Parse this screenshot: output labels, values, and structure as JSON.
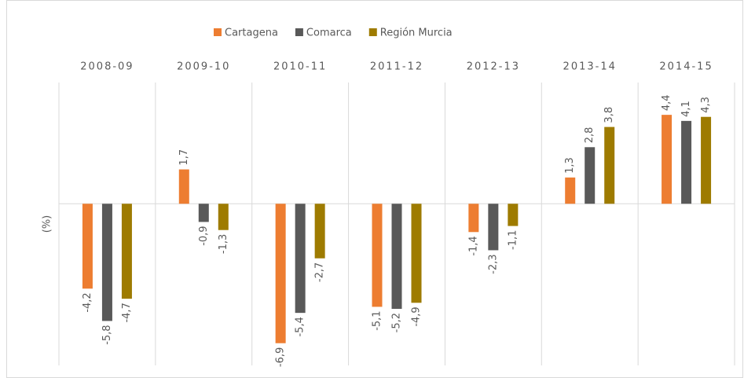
{
  "chart_data": {
    "type": "bar",
    "categories": [
      "2008-09",
      "2009-10",
      "2010-11",
      "2011-12",
      "2012-13",
      "2013-14",
      "2014-15"
    ],
    "series": [
      {
        "name": "Cartagena",
        "color": "#ed7d31",
        "values": [
          -4.2,
          1.7,
          -6.9,
          -5.1,
          -1.4,
          1.3,
          4.4
        ],
        "value_labels": [
          "-4,2",
          "1,7",
          "-6,9",
          "-5,1",
          "-1,4",
          "1,3",
          "4,4"
        ]
      },
      {
        "name": "Comarca",
        "color": "#595959",
        "values": [
          -5.8,
          -0.9,
          -5.4,
          -5.2,
          -2.3,
          2.8,
          4.1
        ],
        "value_labels": [
          "-5,8",
          "-0,9",
          "-5,4",
          "-5,2",
          "-2,3",
          "2,8",
          "4,1"
        ]
      },
      {
        "name": "Región Murcia",
        "color": "#9e7b00",
        "values": [
          -4.7,
          -1.3,
          -2.7,
          -4.9,
          -1.1,
          3.8,
          4.3
        ],
        "value_labels": [
          "-4,7",
          "-1,3",
          "-2,7",
          "-4,9",
          "-1,1",
          "3,8",
          "4,3"
        ]
      }
    ],
    "y_label": "(%)",
    "ylim": [
      -8,
      6
    ],
    "legend": "top"
  }
}
